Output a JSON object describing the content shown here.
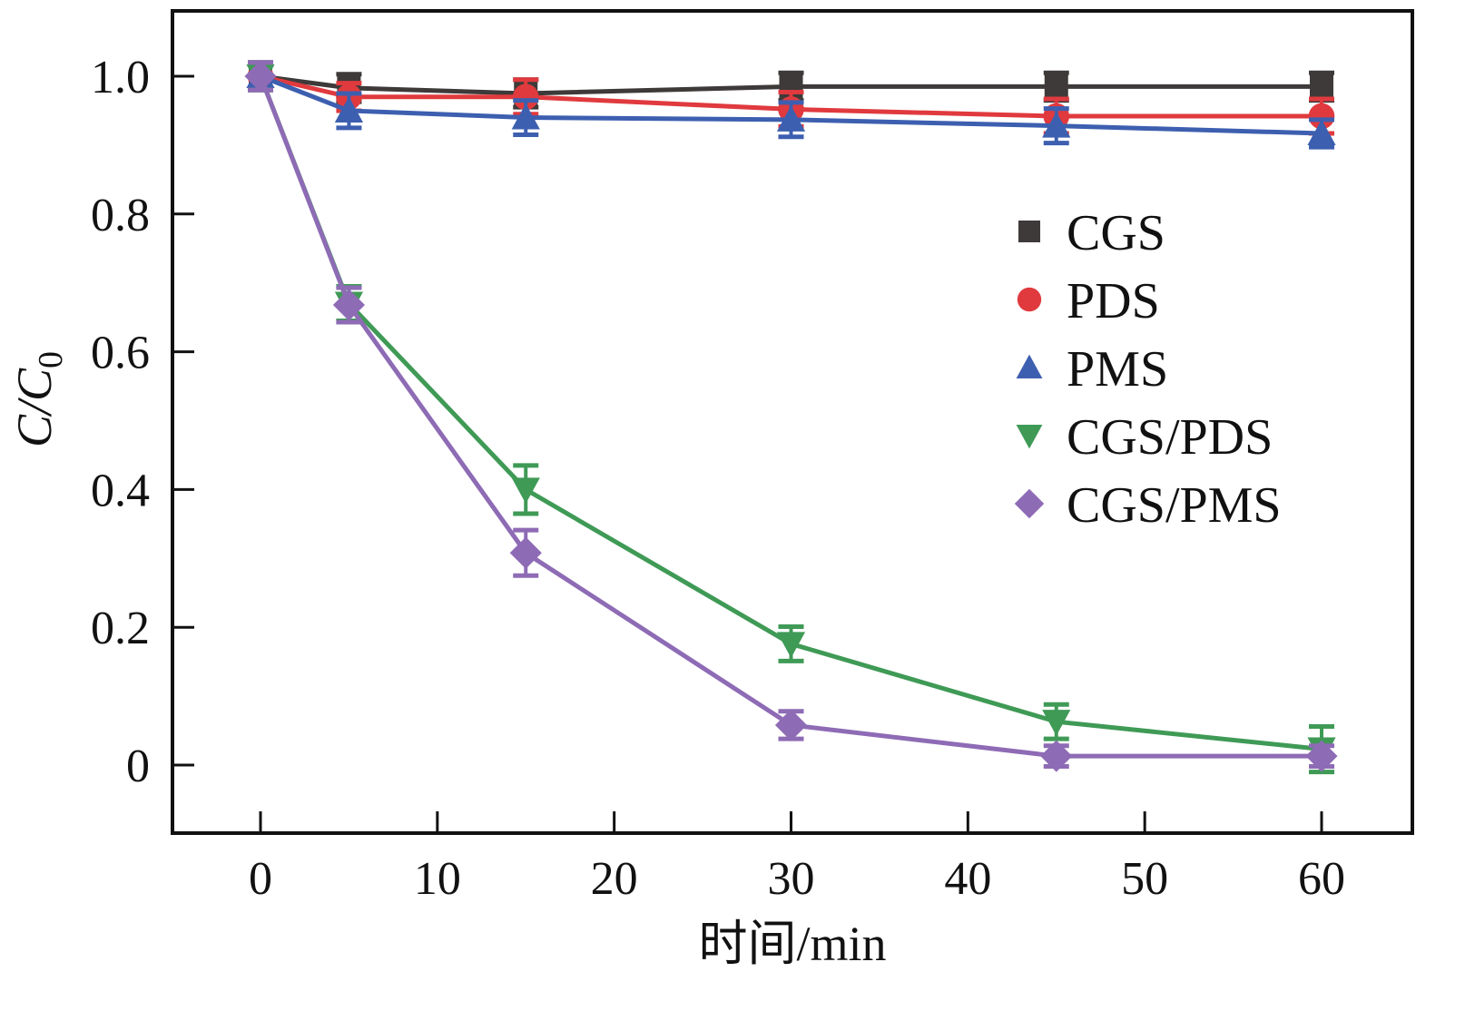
{
  "chart_data": {
    "type": "line",
    "title": "",
    "xlabel": "时间/min",
    "ylabel_parts": {
      "main": "C/C",
      "subscript": "0"
    },
    "ylabel": "C/C0",
    "xlim": [
      -5,
      64
    ],
    "ylim": [
      -0.1,
      1.1
    ],
    "x_ticks": [
      0,
      10,
      20,
      30,
      40,
      50,
      60
    ],
    "x_tick_labels": [
      "0",
      "10",
      "20",
      "30",
      "40",
      "50",
      "60"
    ],
    "y_ticks": [
      0,
      0.2,
      0.4,
      0.6,
      0.8,
      1.0
    ],
    "y_tick_labels": [
      "0",
      "0.2",
      "0.4",
      "0.6",
      "0.8",
      "1.0"
    ],
    "grid": false,
    "legend_position": "center-right",
    "x": [
      0,
      5,
      15,
      30,
      45,
      60
    ],
    "series": [
      {
        "name": "CGS",
        "marker": "square",
        "color": "#3d3a39",
        "values": [
          1.0,
          0.983,
          0.975,
          0.985,
          0.985,
          0.985
        ],
        "errors": [
          0.02,
          0.02,
          0.02,
          0.02,
          0.02,
          0.02
        ]
      },
      {
        "name": "PDS",
        "marker": "circle",
        "color": "#e03a3e",
        "values": [
          1.0,
          0.97,
          0.97,
          0.952,
          0.942,
          0.942
        ],
        "errors": [
          0.02,
          0.02,
          0.025,
          0.025,
          0.025,
          0.025
        ]
      },
      {
        "name": "PMS",
        "marker": "triangle-up",
        "color": "#3d5fb0",
        "values": [
          1.0,
          0.95,
          0.94,
          0.937,
          0.928,
          0.917
        ],
        "errors": [
          0.02,
          0.025,
          0.025,
          0.025,
          0.025,
          0.02
        ]
      },
      {
        "name": "CGS/PDS",
        "marker": "triangle-down",
        "color": "#3f9a56",
        "values": [
          1.0,
          0.67,
          0.4,
          0.176,
          0.063,
          0.023
        ],
        "errors": [
          0.02,
          0.025,
          0.035,
          0.025,
          0.025,
          0.033
        ]
      },
      {
        "name": "CGS/PMS",
        "marker": "diamond",
        "color": "#8e6bb5",
        "values": [
          1.0,
          0.668,
          0.308,
          0.058,
          0.013,
          0.013
        ],
        "errors": [
          0.02,
          0.025,
          0.033,
          0.02,
          0.015,
          0.015
        ]
      }
    ]
  }
}
